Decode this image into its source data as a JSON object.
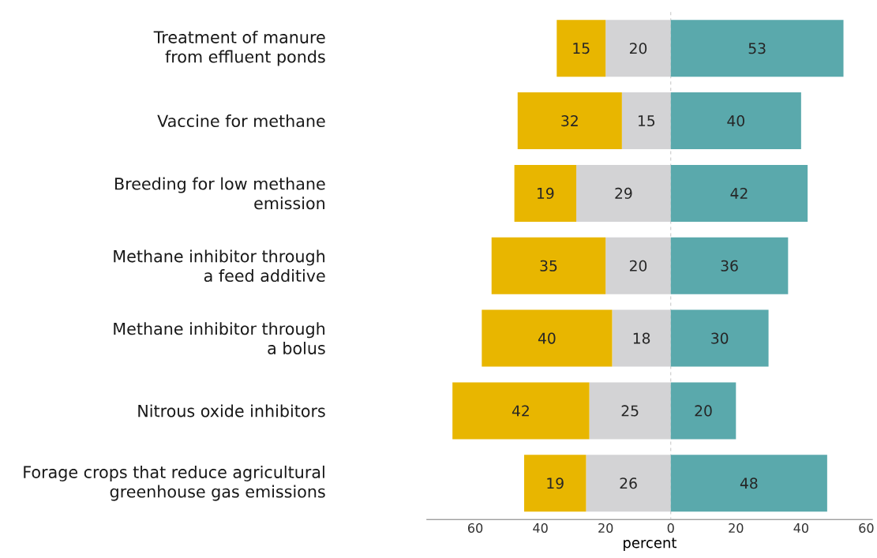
{
  "chart_data": {
    "type": "bar",
    "orientation": "horizontal",
    "categories": [
      "Treatment of manure from effluent ponds",
      "Vaccine for methane",
      "Breeding for low methane emission",
      "Methane inhibitor through a feed additive",
      "Methane inhibitor through a bolus",
      "Nitrous oxide inhibitors",
      "Forage crops that reduce agricultural greenhouse gas emissions"
    ],
    "series": [
      {
        "color": "#d3d3d5",
        "values": [
          20,
          15,
          29,
          20,
          18,
          25,
          26
        ],
        "base": [
          -20,
          -15,
          -29,
          -20,
          -18,
          -25,
          -26
        ]
      },
      {
        "color": "#e8b600",
        "values": [
          15,
          32,
          19,
          35,
          40,
          42,
          19
        ],
        "base": [
          -35,
          -47,
          -48,
          -55,
          -58,
          -67,
          -45
        ]
      },
      {
        "color": "#5aa9ac",
        "values": [
          53,
          40,
          42,
          36,
          30,
          20,
          48
        ],
        "base": [
          0,
          0,
          0,
          0,
          0,
          0,
          0
        ]
      }
    ],
    "data_labels": true,
    "xlim": [
      -75,
      62
    ],
    "xticks": [
      {
        "value": -60,
        "label": "60"
      },
      {
        "value": -40,
        "label": "40"
      },
      {
        "value": -20,
        "label": "20"
      },
      0,
      20,
      40,
      60
    ],
    "xlabel": "percent",
    "ref_lines": [
      {
        "axis": "x",
        "value": 0,
        "color": "#c8c8c8",
        "line_style": "dashed"
      }
    ]
  }
}
